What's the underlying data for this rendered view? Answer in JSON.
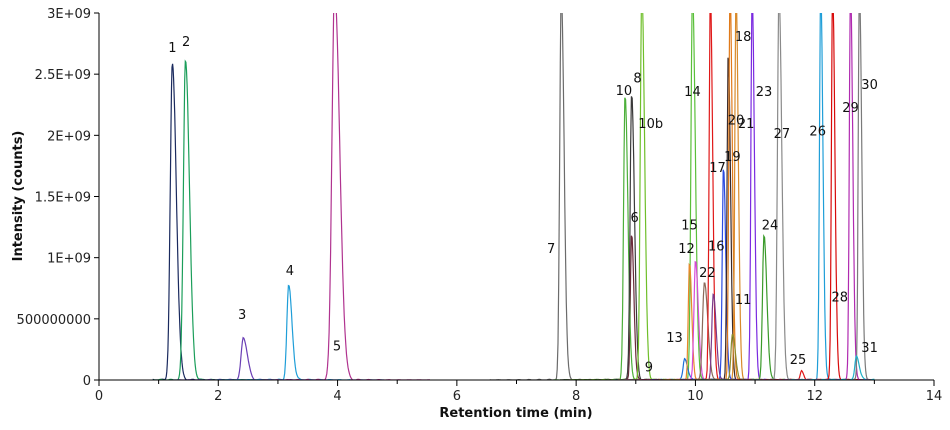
{
  "chart_data": {
    "type": "line",
    "title": "",
    "xlabel": "Retention time (min)",
    "ylabel": "Intensity (counts)",
    "xlim": [
      0,
      14
    ],
    "ylim": [
      0,
      3000000000
    ],
    "x_ticks": [
      0,
      2,
      4,
      6,
      8,
      10,
      12,
      14
    ],
    "x_tick_labels": [
      "0",
      "2",
      "4",
      "6",
      "8",
      "10",
      "12",
      "14"
    ],
    "y_ticks": [
      0,
      500000000,
      1000000000,
      1500000000,
      2000000000,
      2500000000,
      3000000000
    ],
    "y_tick_labels": [
      "0",
      "500000000",
      "1E+09",
      "1.5E+09",
      "2E+09",
      "2.5E+09",
      "3E+09"
    ],
    "grid": false,
    "legend": "none",
    "peaks": [
      {
        "rt": 1.23,
        "height": 2580000000,
        "width": 0.035,
        "color": "#1a2a5e"
      },
      {
        "rt": 1.45,
        "height": 2620000000,
        "width": 0.035,
        "color": "#1b9e5a"
      },
      {
        "rt": 2.42,
        "height": 350000000,
        "width": 0.035,
        "color": "#6a3fb5"
      },
      {
        "rt": 3.18,
        "height": 770000000,
        "width": 0.03,
        "color": "#1f9ed8"
      },
      {
        "rt": 3.95,
        "height": 3200000000,
        "width": 0.045,
        "color": "#b0338f"
      },
      {
        "rt": 7.75,
        "height": 3200000000,
        "width": 0.025,
        "color": "#6b6b6b"
      },
      {
        "rt": 8.93,
        "height": 1200000000,
        "width": 0.02,
        "color": "#6a2a3a"
      },
      {
        "rt": 8.82,
        "height": 2330000000,
        "width": 0.025,
        "color": "#4caf3a"
      },
      {
        "rt": 8.93,
        "height": 2350000000,
        "width": 0.025,
        "color": "#3a3a3a"
      },
      {
        "rt": 9.1,
        "height": 3200000000,
        "width": 0.025,
        "color": "#6fbf2a"
      },
      {
        "rt": 9.95,
        "height": 3200000000,
        "width": 0.025,
        "color": "#5abf3a"
      },
      {
        "rt": 9.82,
        "height": 180000000,
        "width": 0.025,
        "color": "#1f6fd8"
      },
      {
        "rt": 9.9,
        "height": 950000000,
        "width": 0.02,
        "color": "#e8882a"
      },
      {
        "rt": 10.0,
        "height": 980000000,
        "width": 0.025,
        "color": "#d84ad8"
      },
      {
        "rt": 10.15,
        "height": 800000000,
        "width": 0.03,
        "color": "#8a6a5a"
      },
      {
        "rt": 10.25,
        "height": 3200000000,
        "width": 0.02,
        "color": "#e01818"
      },
      {
        "rt": 10.3,
        "height": 700000000,
        "width": 0.025,
        "color": "#7a3a8a"
      },
      {
        "rt": 10.47,
        "height": 1740000000,
        "width": 0.02,
        "color": "#2a4ae0"
      },
      {
        "rt": 10.55,
        "height": 2680000000,
        "width": 0.02,
        "color": "#3a2a2a"
      },
      {
        "rt": 10.58,
        "height": 3200000000,
        "width": 0.02,
        "color": "#e07a1a"
      },
      {
        "rt": 10.68,
        "height": 3200000000,
        "width": 0.02,
        "color": "#d88a2a"
      },
      {
        "rt": 10.62,
        "height": 380000000,
        "width": 0.025,
        "color": "#8a8a2a"
      },
      {
        "rt": 10.95,
        "height": 3200000000,
        "width": 0.02,
        "color": "#7a2ae0"
      },
      {
        "rt": 11.15,
        "height": 1180000000,
        "width": 0.025,
        "color": "#3a9a2a"
      },
      {
        "rt": 11.4,
        "height": 3200000000,
        "width": 0.025,
        "color": "#8a8a8a"
      },
      {
        "rt": 11.78,
        "height": 70000000,
        "width": 0.02,
        "color": "#e01818"
      },
      {
        "rt": 12.1,
        "height": 3200000000,
        "width": 0.02,
        "color": "#1f9ed8"
      },
      {
        "rt": 12.3,
        "height": 3200000000,
        "width": 0.02,
        "color": "#d80a0a"
      },
      {
        "rt": 12.6,
        "height": 3200000000,
        "width": 0.02,
        "color": "#b02ab0"
      },
      {
        "rt": 12.75,
        "height": 3200000000,
        "width": 0.02,
        "color": "#7a7a7a"
      },
      {
        "rt": 12.7,
        "height": 200000000,
        "width": 0.025,
        "color": "#1fb0c8"
      }
    ],
    "annotations": [
      {
        "text": "1",
        "x": 1.23,
        "y": 2680000000
      },
      {
        "text": "2",
        "x": 1.46,
        "y": 2730000000
      },
      {
        "text": "3",
        "x": 2.4,
        "y": 500000000
      },
      {
        "text": "4",
        "x": 3.2,
        "y": 860000000
      },
      {
        "text": "5",
        "x": 3.99,
        "y": 240000000
      },
      {
        "text": "6",
        "x": 8.98,
        "y": 1290000000
      },
      {
        "text": "7",
        "x": 7.58,
        "y": 1040000000
      },
      {
        "text": "8",
        "x": 9.03,
        "y": 2430000000
      },
      {
        "text": "9",
        "x": 9.22,
        "y": 70000000
      },
      {
        "text": "10",
        "x": 8.8,
        "y": 2330000000
      },
      {
        "text": "10b",
        "x": 9.25,
        "y": 2060000000
      },
      {
        "text": "11",
        "x": 10.8,
        "y": 620000000
      },
      {
        "text": "12",
        "x": 9.85,
        "y": 1040000000
      },
      {
        "text": "13",
        "x": 9.65,
        "y": 310000000
      },
      {
        "text": "14",
        "x": 9.95,
        "y": 2320000000
      },
      {
        "text": "15",
        "x": 9.9,
        "y": 1230000000
      },
      {
        "text": "16",
        "x": 10.35,
        "y": 1060000000
      },
      {
        "text": "17",
        "x": 10.37,
        "y": 1700000000
      },
      {
        "text": "18",
        "x": 10.8,
        "y": 2770000000
      },
      {
        "text": "19",
        "x": 10.62,
        "y": 1790000000
      },
      {
        "text": "20",
        "x": 10.68,
        "y": 2090000000
      },
      {
        "text": "21",
        "x": 10.85,
        "y": 2060000000
      },
      {
        "text": "22",
        "x": 10.2,
        "y": 840000000
      },
      {
        "text": "23",
        "x": 11.15,
        "y": 2320000000
      },
      {
        "text": "24",
        "x": 11.25,
        "y": 1230000000
      },
      {
        "text": "25",
        "x": 11.72,
        "y": 130000000
      },
      {
        "text": "26",
        "x": 12.05,
        "y": 2000000000
      },
      {
        "text": "27",
        "x": 11.45,
        "y": 1980000000
      },
      {
        "text": "28",
        "x": 12.42,
        "y": 640000000
      },
      {
        "text": "29",
        "x": 12.6,
        "y": 2190000000
      },
      {
        "text": "30",
        "x": 12.92,
        "y": 2380000000
      },
      {
        "text": "31",
        "x": 12.92,
        "y": 230000000
      }
    ]
  }
}
